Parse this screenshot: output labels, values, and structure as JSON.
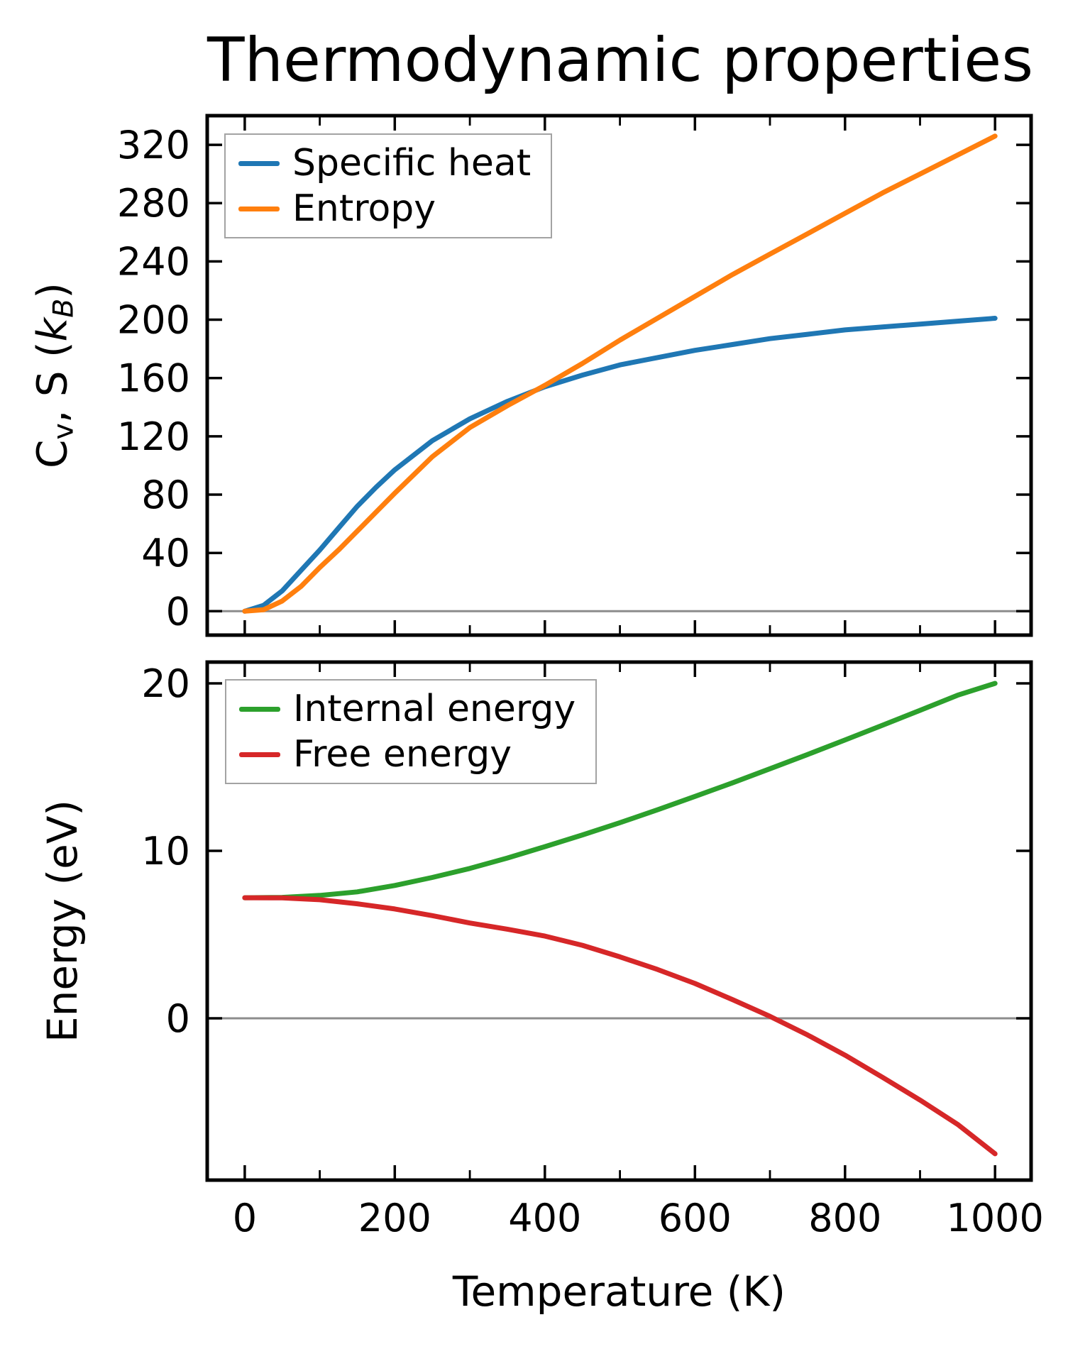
{
  "title": "Thermodynamic properties",
  "colors": {
    "specific_heat": "#1f77b4",
    "entropy": "#ff7f0e",
    "internal_energy": "#2ca02c",
    "free_energy": "#d62728",
    "zero_line": "#8c8c8c",
    "spine": "#000000",
    "background": "#ffffff",
    "legend_edge": "#a3a3a3"
  },
  "top_ylabel_parts": [
    {
      "t": "C",
      "style": ""
    },
    {
      "t": "v",
      "style": "sub"
    },
    {
      "t": ", S (",
      "style": ""
    },
    {
      "t": "k",
      "style": "ital"
    },
    {
      "t": "B",
      "style": "sub ital"
    },
    {
      "t": ")",
      "style": ""
    }
  ],
  "chart_data": [
    {
      "type": "line",
      "title": "Thermodynamic properties",
      "xlabel": "Temperature (K)",
      "ylabel": "Cv, S (kB)",
      "xlim": [
        -50,
        1048
      ],
      "ylim": [
        -16.4,
        340
      ],
      "grid": false,
      "zero_line": 0,
      "legend_position": "upper left",
      "xticks": [
        0,
        200,
        400,
        600,
        800,
        1000
      ],
      "xticks_minor": [
        100,
        300,
        500,
        700,
        900
      ],
      "yticks": [
        0,
        40,
        80,
        120,
        160,
        200,
        240,
        280,
        320
      ],
      "x": [
        0,
        25,
        50,
        75,
        100,
        125,
        150,
        175,
        200,
        250,
        300,
        350,
        400,
        450,
        500,
        550,
        600,
        650,
        700,
        750,
        800,
        850,
        900,
        950,
        1000
      ],
      "series": [
        {
          "name": "Specific heat",
          "color": "#1f77b4",
          "values": [
            0,
            4,
            14,
            28,
            42,
            57,
            72,
            85,
            97,
            117,
            132,
            144,
            154,
            162,
            169,
            174,
            179,
            183,
            187,
            190,
            193,
            195,
            197,
            199,
            201
          ]
        },
        {
          "name": "Entropy",
          "color": "#ff7f0e",
          "values": [
            0,
            1,
            7,
            17,
            30,
            42,
            55,
            68,
            81,
            106,
            126,
            141,
            155,
            170,
            186,
            201,
            216,
            231,
            245,
            259,
            273,
            287,
            300,
            313,
            326
          ]
        }
      ]
    },
    {
      "type": "line",
      "title": "",
      "xlabel": "Temperature (K)",
      "ylabel": "Energy (eV)",
      "xlim": [
        -50,
        1048
      ],
      "ylim": [
        -9.66,
        21.27
      ],
      "grid": false,
      "zero_line": 0,
      "legend_position": "upper left",
      "xticks": [
        0,
        200,
        400,
        600,
        800,
        1000
      ],
      "xticks_minor": [
        100,
        300,
        500,
        700,
        900
      ],
      "yticks": [
        0,
        10,
        20
      ],
      "x": [
        0,
        50,
        100,
        150,
        200,
        250,
        300,
        350,
        400,
        450,
        500,
        550,
        600,
        650,
        700,
        750,
        800,
        850,
        900,
        950,
        1000
      ],
      "series": [
        {
          "name": "Internal energy",
          "color": "#2ca02c",
          "values": [
            7.2,
            7.22,
            7.34,
            7.55,
            7.93,
            8.41,
            8.95,
            9.57,
            10.25,
            10.95,
            11.68,
            12.45,
            13.25,
            14.06,
            14.9,
            15.75,
            16.62,
            17.5,
            18.39,
            19.29,
            20.0
          ]
        },
        {
          "name": "Free energy",
          "color": "#d62728",
          "values": [
            7.2,
            7.19,
            7.08,
            6.84,
            6.53,
            6.13,
            5.69,
            5.32,
            4.91,
            4.36,
            3.67,
            2.92,
            2.08,
            1.12,
            0.12,
            -0.99,
            -2.2,
            -3.52,
            -4.88,
            -6.33,
            -8.09
          ]
        }
      ]
    }
  ]
}
